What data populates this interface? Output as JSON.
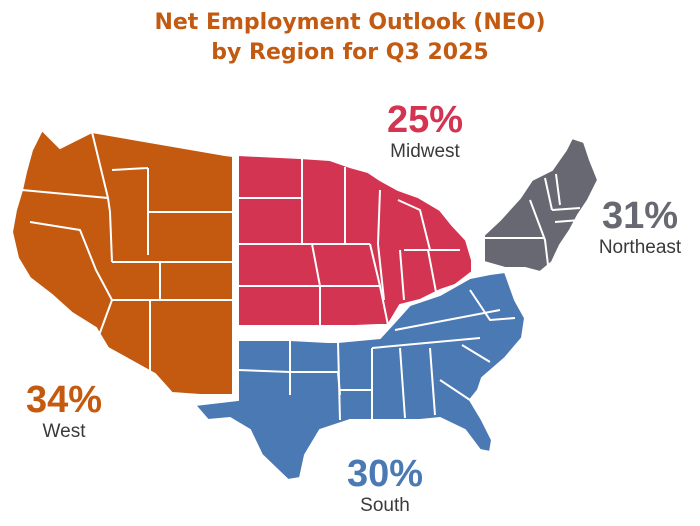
{
  "title": {
    "line1": "Net Employment Outlook (NEO)",
    "line2": "by Region for Q3 2025",
    "color": "#c35a12"
  },
  "regions": [
    {
      "key": "west",
      "name": "West",
      "value": "34%",
      "color": "#c45a10"
    },
    {
      "key": "midwest",
      "name": "Midwest",
      "value": "25%",
      "color": "#d33451"
    },
    {
      "key": "northeast",
      "name": "Northeast",
      "value": "31%",
      "color": "#676872"
    },
    {
      "key": "south",
      "name": "South",
      "value": "30%",
      "color": "#4b79b4"
    }
  ]
}
